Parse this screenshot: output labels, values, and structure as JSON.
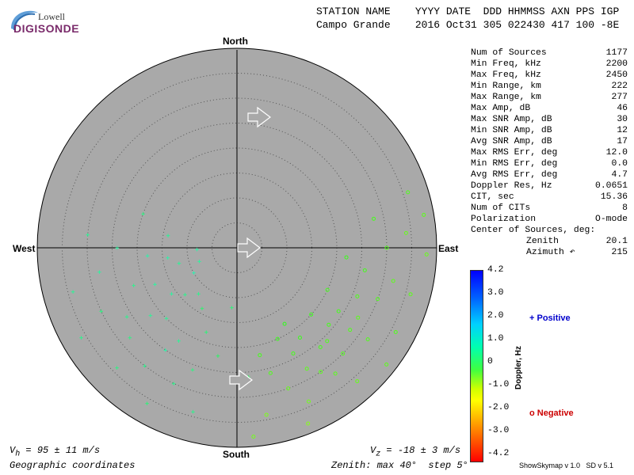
{
  "logo": {
    "lowell": "Lowell",
    "digisonde": "DIGISONDE"
  },
  "header": {
    "station_label": "STATION NAME",
    "columns_label": "YYYY DATE  DDD HHMMSS AXN PPS IGP",
    "station_name": "Campo Grande",
    "columns_value": "2016 Oct31 305 022430 417 100 -8E"
  },
  "directions": {
    "north": "North",
    "south": "South",
    "east": "East",
    "west": "West"
  },
  "stats": [
    {
      "label": "Num of Sources",
      "value": "1177"
    },
    {
      "label": "Min Freq, kHz",
      "value": "2200"
    },
    {
      "label": "Max Freq, kHz",
      "value": "2450"
    },
    {
      "label": "Min Range, km",
      "value": "222"
    },
    {
      "label": "Max Range, km",
      "value": "277"
    },
    {
      "label": "Max Amp, dB",
      "value": "46"
    },
    {
      "label": "Max SNR Amp, dB",
      "value": "30"
    },
    {
      "label": "Min SNR Amp, dB",
      "value": "12"
    },
    {
      "label": "Avg SNR Amp, dB",
      "value": "17"
    },
    {
      "label": "Max RMS Err, deg",
      "value": "12.0"
    },
    {
      "label": "Min RMS Err, deg",
      "value": "0.0"
    },
    {
      "label": "Avg RMS Err, deg",
      "value": "4.7"
    },
    {
      "label": "Doppler Res, Hz",
      "value": "0.0651"
    },
    {
      "label": "CIT, sec",
      "value": "15.36"
    },
    {
      "label": "Num of CITs",
      "value": "8"
    },
    {
      "label": "Polarization",
      "value": "O-mode"
    },
    {
      "label": "Center of Sources, deg:",
      "value": ""
    },
    {
      "label": "Zenith",
      "value": "20.1"
    },
    {
      "label": "Azimuth ↶",
      "value": "215"
    }
  ],
  "colorbar": {
    "ticks": [
      "4.2",
      "3.0",
      "2.0",
      "1.0",
      "0",
      "-1.0",
      "-2.0",
      "-3.0",
      "-4.2"
    ],
    "label": "Doppler, Hz",
    "max": 4.2,
    "min": -4.2
  },
  "legend": {
    "positive": "+ Positive",
    "negative": "o Negative"
  },
  "footer": {
    "vh_prefix": "V",
    "vh_sub": "h",
    "vh_value": " = 95 ± 11 m/s",
    "vz_prefix": "V",
    "vz_sub": "z",
    "vz_value": " = -18 ± 3 m/s",
    "coords": "Geographic coordinates",
    "zenith": "Zenith: max 40°  step 5°",
    "version": "ShowSkymap v 1.0   SD v 5.1"
  },
  "colors": {
    "disk": "#a9a9a9",
    "grid": "#555555",
    "positive_marker": "#40ffa0",
    "negative_marker": "#c8ff40"
  },
  "chart_data": {
    "type": "scatter",
    "coordinate_system": "polar",
    "zenith_max_deg": 40,
    "zenith_step_deg": 5,
    "series": [
      {
        "name": "Positive",
        "marker": "+",
        "points": [
          {
            "az": 270,
            "zen": 24,
            "doppler": 1.2
          },
          {
            "az": 265,
            "zen": 18,
            "doppler": 1.3
          },
          {
            "az": 255,
            "zen": 12,
            "doppler": 1.1
          },
          {
            "az": 240,
            "zen": 10,
            "doppler": 1.4
          },
          {
            "az": 250,
            "zen": 22,
            "doppler": 1.0
          },
          {
            "az": 245,
            "zen": 30,
            "doppler": 0.9
          },
          {
            "az": 235,
            "zen": 16,
            "doppler": 1.2
          },
          {
            "az": 225,
            "zen": 20,
            "doppler": 1.1
          },
          {
            "az": 215,
            "zen": 25,
            "doppler": 1.3
          },
          {
            "az": 205,
            "zen": 30,
            "doppler": 1.0
          },
          {
            "az": 200,
            "zen": 18,
            "doppler": 0.8
          },
          {
            "az": 195,
            "zen": 34,
            "doppler": 1.0
          },
          {
            "az": 260,
            "zen": 28,
            "doppler": 1.2
          },
          {
            "az": 275,
            "zen": 30,
            "doppler": 1.1
          },
          {
            "az": 230,
            "zen": 28,
            "doppler": 0.9
          },
          {
            "az": 220,
            "zen": 12,
            "doppler": 1.0
          },
          {
            "az": 210,
            "zen": 14,
            "doppler": 0.7
          },
          {
            "az": 190,
            "zen": 22,
            "doppler": 0.6
          },
          {
            "az": 185,
            "zen": 12,
            "doppler": 0.8
          },
          {
            "az": 250,
            "zen": 8,
            "doppler": 1.2
          },
          {
            "az": 280,
            "zen": 14,
            "doppler": 1.1
          },
          {
            "az": 290,
            "zen": 20,
            "doppler": 0.9
          },
          {
            "az": 240,
            "zen": 36,
            "doppler": 1.0
          },
          {
            "az": 225,
            "zen": 34,
            "doppler": 0.9
          },
          {
            "az": 255,
            "zen": 34,
            "doppler": 1.1
          },
          {
            "az": 210,
            "zen": 36,
            "doppler": 0.8
          },
          {
            "az": 175,
            "zen": 26,
            "doppler": 0.5
          },
          {
            "az": 200,
            "zen": 26,
            "doppler": 0.9
          },
          {
            "az": 268,
            "zen": 8,
            "doppler": 1.3
          },
          {
            "az": 232,
            "zen": 22,
            "doppler": 1.1
          },
          {
            "az": 238,
            "zen": 26,
            "doppler": 1.0
          },
          {
            "az": 246,
            "zen": 18,
            "doppler": 1.2
          },
          {
            "az": 218,
            "zen": 30,
            "doppler": 1.0
          },
          {
            "az": 212,
            "zen": 22,
            "doppler": 1.1
          },
          {
            "az": 262,
            "zen": 14,
            "doppler": 1.3
          },
          {
            "az": 228,
            "zen": 14,
            "doppler": 1.0
          }
        ]
      },
      {
        "name": "Negative",
        "marker": "o",
        "points": [
          {
            "az": 140,
            "zen": 26,
            "doppler": -0.4
          },
          {
            "az": 150,
            "zen": 28,
            "doppler": -0.6
          },
          {
            "az": 135,
            "zen": 30,
            "doppler": -0.5
          },
          {
            "az": 145,
            "zen": 22,
            "doppler": -0.3
          },
          {
            "az": 160,
            "zen": 30,
            "doppler": -0.7
          },
          {
            "az": 130,
            "zen": 24,
            "doppler": -0.4
          },
          {
            "az": 125,
            "zen": 32,
            "doppler": -0.5
          },
          {
            "az": 155,
            "zen": 34,
            "doppler": -0.8
          },
          {
            "az": 120,
            "zen": 28,
            "doppler": -0.6
          },
          {
            "az": 110,
            "zen": 30,
            "doppler": -0.5
          },
          {
            "az": 100,
            "zen": 26,
            "doppler": -0.4
          },
          {
            "az": 95,
            "zen": 22,
            "doppler": -0.3
          },
          {
            "az": 105,
            "zen": 36,
            "doppler": -0.6
          },
          {
            "az": 115,
            "zen": 20,
            "doppler": -0.4
          },
          {
            "az": 90,
            "zen": 30,
            "doppler": -0.5
          },
          {
            "az": 85,
            "zen": 34,
            "doppler": -0.7
          },
          {
            "az": 80,
            "zen": 38,
            "doppler": -0.6
          },
          {
            "az": 165,
            "zen": 26,
            "doppler": -0.5
          },
          {
            "az": 170,
            "zen": 34,
            "doppler": -0.9
          },
          {
            "az": 175,
            "zen": 38,
            "doppler": -0.8
          },
          {
            "az": 148,
            "zen": 18,
            "doppler": -0.2
          },
          {
            "az": 138,
            "zen": 36,
            "doppler": -0.7
          },
          {
            "az": 128,
            "zen": 38,
            "doppler": -0.6
          },
          {
            "az": 118,
            "zen": 36,
            "doppler": -0.5
          },
          {
            "az": 142,
            "zen": 32,
            "doppler": -0.6
          },
          {
            "az": 152,
            "zen": 24,
            "doppler": -0.4
          },
          {
            "az": 132,
            "zen": 20,
            "doppler": -0.3
          },
          {
            "az": 122,
            "zen": 24,
            "doppler": -0.4
          },
          {
            "az": 112,
            "zen": 26,
            "doppler": -0.5
          },
          {
            "az": 102,
            "zen": 32,
            "doppler": -0.6
          },
          {
            "az": 92,
            "zen": 38,
            "doppler": -0.7
          },
          {
            "az": 158,
            "zen": 38,
            "doppler": -1.0
          },
          {
            "az": 168,
            "zen": 22,
            "doppler": -0.4
          },
          {
            "az": 72,
            "zen": 36,
            "doppler": -0.5
          },
          {
            "az": 78,
            "zen": 28,
            "doppler": -0.4
          },
          {
            "az": 136,
            "zen": 26,
            "doppler": -0.5
          },
          {
            "az": 146,
            "zen": 30,
            "doppler": -0.6
          },
          {
            "az": 126,
            "zen": 28,
            "doppler": -0.5
          },
          {
            "az": 156,
            "zen": 20,
            "doppler": -0.3
          }
        ]
      }
    ],
    "velocity_arrows": [
      {
        "az": 90,
        "zen": 3
      },
      {
        "az": 90,
        "zen": 0
      },
      {
        "az": 90,
        "zen": 0
      }
    ]
  }
}
